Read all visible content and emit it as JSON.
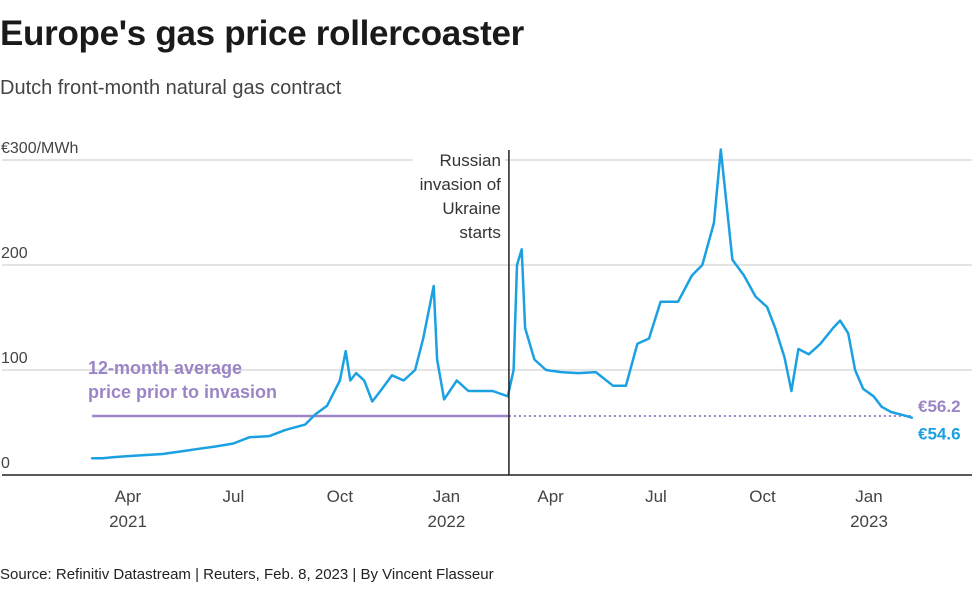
{
  "header": {
    "title": "Europe's gas price rollercoaster",
    "subtitle": "Dutch front-month natural gas contract"
  },
  "footer": {
    "source": "Source: Refinitiv Datastream | Reuters, Feb. 8, 2023 | By Vincent Flasseur"
  },
  "colors": {
    "series": "#1ba1e2",
    "average": "#9b85c6",
    "axis": "#222222",
    "grid": "#c8c8c8",
    "text": "#444444"
  },
  "chart_data": {
    "type": "line",
    "title": "Europe's gas price rollercoaster",
    "subtitle": "Dutch front-month natural gas contract",
    "ylabel": "",
    "yunit": "€300/MWh",
    "ylim": [
      0,
      300
    ],
    "yticks": [
      {
        "value": 0,
        "label": "0"
      },
      {
        "value": 100,
        "label": "100"
      },
      {
        "value": 200,
        "label": "200"
      },
      {
        "value": 300,
        "label": "€300/MWh"
      }
    ],
    "xlim": [
      "2021-02-15",
      "2023-03-31"
    ],
    "xticks": [
      {
        "date": "2021-04-01",
        "label": "Apr",
        "year": "2021"
      },
      {
        "date": "2021-07-01",
        "label": "Jul",
        "year": ""
      },
      {
        "date": "2021-10-01",
        "label": "Oct",
        "year": ""
      },
      {
        "date": "2022-01-01",
        "label": "Jan",
        "year": "2022"
      },
      {
        "date": "2022-04-01",
        "label": "Apr",
        "year": ""
      },
      {
        "date": "2022-07-01",
        "label": "Jul",
        "year": ""
      },
      {
        "date": "2022-10-01",
        "label": "Oct",
        "year": ""
      },
      {
        "date": "2023-01-01",
        "label": "Jan",
        "year": "2023"
      }
    ],
    "grid": true,
    "legend": "none",
    "series": [
      {
        "name": "",
        "points": [
          [
            "2021-03-01",
            16
          ],
          [
            "2021-03-10",
            16
          ],
          [
            "2021-03-20",
            17
          ],
          [
            "2021-04-01",
            18
          ],
          [
            "2021-04-15",
            19
          ],
          [
            "2021-05-01",
            20
          ],
          [
            "2021-05-20",
            23
          ],
          [
            "2021-06-01",
            25
          ],
          [
            "2021-06-15",
            27
          ],
          [
            "2021-07-01",
            30
          ],
          [
            "2021-07-15",
            36
          ],
          [
            "2021-08-01",
            37
          ],
          [
            "2021-08-15",
            43
          ],
          [
            "2021-09-01",
            48
          ],
          [
            "2021-09-10",
            58
          ],
          [
            "2021-09-20",
            66
          ],
          [
            "2021-10-01",
            90
          ],
          [
            "2021-10-06",
            118
          ],
          [
            "2021-10-10",
            90
          ],
          [
            "2021-10-15",
            97
          ],
          [
            "2021-10-22",
            90
          ],
          [
            "2021-10-29",
            70
          ],
          [
            "2021-11-05",
            80
          ],
          [
            "2021-11-15",
            95
          ],
          [
            "2021-11-25",
            90
          ],
          [
            "2021-12-05",
            100
          ],
          [
            "2021-12-12",
            130
          ],
          [
            "2021-12-21",
            180
          ],
          [
            "2021-12-24",
            110
          ],
          [
            "2021-12-30",
            72
          ],
          [
            "2022-01-10",
            90
          ],
          [
            "2022-01-20",
            80
          ],
          [
            "2022-02-01",
            80
          ],
          [
            "2022-02-10",
            80
          ],
          [
            "2022-02-23",
            75
          ],
          [
            "2022-02-28",
            100
          ],
          [
            "2022-03-03",
            200
          ],
          [
            "2022-03-07",
            215
          ],
          [
            "2022-03-10",
            140
          ],
          [
            "2022-03-18",
            110
          ],
          [
            "2022-03-28",
            100
          ],
          [
            "2022-04-10",
            98
          ],
          [
            "2022-04-25",
            97
          ],
          [
            "2022-05-10",
            98
          ],
          [
            "2022-05-25",
            85
          ],
          [
            "2022-06-05",
            85
          ],
          [
            "2022-06-15",
            125
          ],
          [
            "2022-06-25",
            130
          ],
          [
            "2022-07-05",
            165
          ],
          [
            "2022-07-20",
            165
          ],
          [
            "2022-08-01",
            190
          ],
          [
            "2022-08-10",
            200
          ],
          [
            "2022-08-20",
            240
          ],
          [
            "2022-08-26",
            310
          ],
          [
            "2022-09-05",
            205
          ],
          [
            "2022-09-15",
            190
          ],
          [
            "2022-09-25",
            170
          ],
          [
            "2022-10-05",
            160
          ],
          [
            "2022-10-12",
            140
          ],
          [
            "2022-10-20",
            112
          ],
          [
            "2022-10-26",
            80
          ],
          [
            "2022-11-01",
            120
          ],
          [
            "2022-11-10",
            115
          ],
          [
            "2022-11-20",
            125
          ],
          [
            "2022-12-01",
            140
          ],
          [
            "2022-12-07",
            147
          ],
          [
            "2022-12-14",
            135
          ],
          [
            "2022-12-20",
            100
          ],
          [
            "2022-12-27",
            82
          ],
          [
            "2023-01-05",
            75
          ],
          [
            "2023-01-12",
            65
          ],
          [
            "2023-01-20",
            60
          ],
          [
            "2023-01-27",
            58
          ],
          [
            "2023-02-03",
            56
          ],
          [
            "2023-02-07",
            54.6
          ]
        ]
      }
    ],
    "annotations": {
      "invasion": {
        "date": "2022-02-24",
        "lines": [
          "Russian",
          "invasion of",
          "Ukraine",
          "starts"
        ]
      },
      "average": {
        "value": 56.2,
        "start": "2021-03-01",
        "end": "2023-02-07",
        "lines": [
          "12-month average",
          "price prior to invasion"
        ],
        "value_label": "€56.2"
      },
      "last_value": {
        "value": 54.6,
        "value_label": "€54.6"
      }
    }
  }
}
